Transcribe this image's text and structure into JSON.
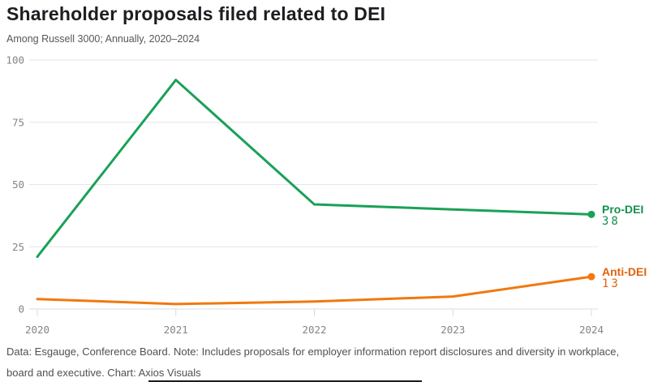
{
  "header": {
    "title": "Shareholder proposals filed related to DEI",
    "subtitle": "Among Russell 3000; Annually, 2020–2024"
  },
  "chart_data": {
    "type": "line",
    "categories": [
      "2020",
      "2021",
      "2022",
      "2023",
      "2024"
    ],
    "series": [
      {
        "name": "Pro-DEI",
        "values": [
          21,
          92,
          42,
          40,
          38
        ],
        "color": "#1aa158",
        "label_color": "#13914f"
      },
      {
        "name": "Anti-DEI",
        "values": [
          4,
          2,
          3,
          5,
          13
        ],
        "color": "#f0790f",
        "label_color": "#e2620d"
      }
    ],
    "y_ticks": [
      0,
      25,
      50,
      75,
      100
    ],
    "ylim": [
      0,
      100
    ],
    "xlabel": "",
    "ylabel": "",
    "grid": true,
    "legend_position": "end-of-line",
    "end_dot": true
  },
  "footer": {
    "note": "Data: Esgauge, Conference Board. Note: Includes proposals for employer information report disclosures and diversity in workplace, board and executive. Chart: Axios Visuals"
  }
}
